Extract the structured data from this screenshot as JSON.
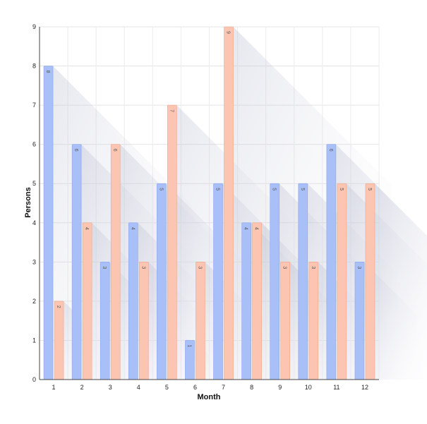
{
  "chart_data": {
    "type": "bar",
    "title": "",
    "xlabel": "Month",
    "ylabel": "Persons",
    "categories": [
      "1",
      "2",
      "3",
      "4",
      "5",
      "6",
      "7",
      "8",
      "9",
      "10",
      "11",
      "12"
    ],
    "ylim": [
      0,
      9
    ],
    "yticks": [
      "0",
      "1",
      "2",
      "3",
      "4",
      "5",
      "6",
      "7",
      "8",
      "9"
    ],
    "grid": true,
    "legend": "none",
    "series": [
      {
        "values": [
          8,
          6,
          3,
          4,
          5,
          1,
          5,
          4,
          5,
          5,
          6,
          3
        ],
        "color": "#a9bff7",
        "stroke": "#8aa6ee"
      },
      {
        "values": [
          2,
          4,
          6,
          3,
          7,
          3,
          9,
          4,
          3,
          3,
          5,
          5
        ],
        "color": "#fbc5b2",
        "stroke": "#efa68c"
      }
    ]
  }
}
